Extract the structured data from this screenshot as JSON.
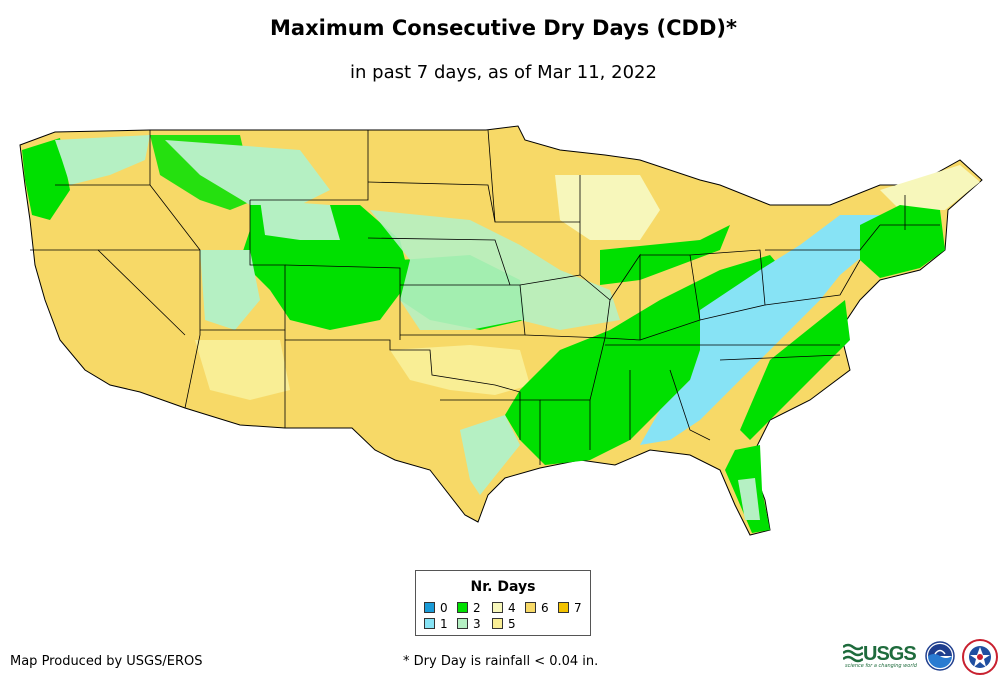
{
  "title": "Maximum Consecutive Dry Days (CDD)*",
  "subtitle": "in past 7 days, as of Mar 11, 2022",
  "map": {
    "region": "Contiguous United States",
    "colors": {
      "d0": "#1a9bd7",
      "d1": "#87e3f5",
      "d2": "#00e000",
      "d3": "#b5f0c3",
      "d4": "#f7f7bb",
      "d5": "#f9ee95",
      "d6": "#f7d967",
      "d7": "#f2c200",
      "state_border": "#000000"
    }
  },
  "legend": {
    "title": "Nr. Days",
    "items": [
      {
        "label": "0",
        "color": "#1a9bd7"
      },
      {
        "label": "1",
        "color": "#87e3f5"
      },
      {
        "label": "2",
        "color": "#00e000"
      },
      {
        "label": "3",
        "color": "#b5f0c3"
      },
      {
        "label": "4",
        "color": "#f7f7bb"
      },
      {
        "label": "5",
        "color": "#f9ee95"
      },
      {
        "label": "6",
        "color": "#f7d967"
      },
      {
        "label": "7",
        "color": "#f2c200"
      }
    ]
  },
  "footer": {
    "credit": "Map Produced by USGS/EROS",
    "footnote": "* Dry Day is rainfall < 0.04 in.",
    "usgs_word": "USGS",
    "usgs_tagline": "science for a changing world",
    "logos": [
      "usgs-logo",
      "noaa-logo",
      "nws-logo"
    ]
  }
}
